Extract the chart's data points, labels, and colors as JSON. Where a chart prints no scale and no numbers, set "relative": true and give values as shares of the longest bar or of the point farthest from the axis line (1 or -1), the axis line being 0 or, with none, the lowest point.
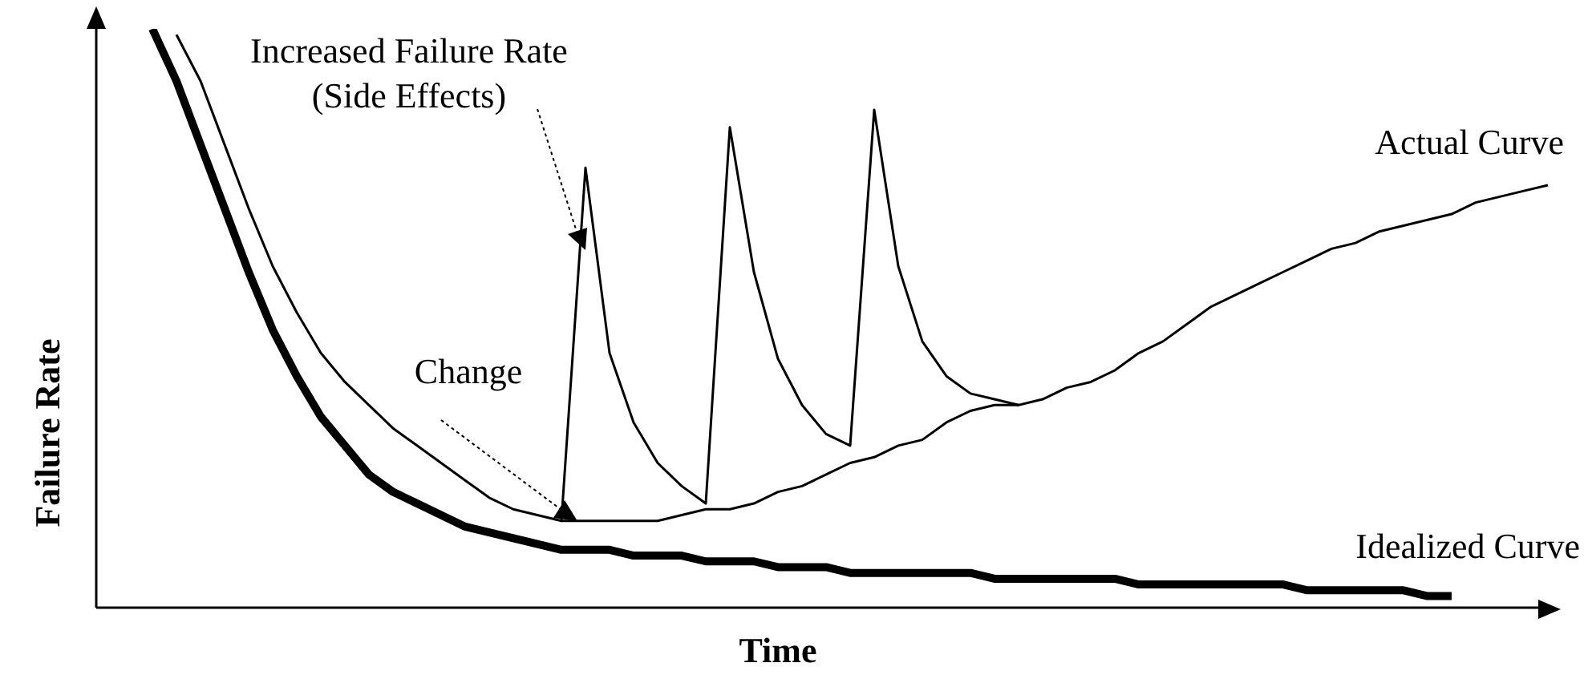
{
  "chart_data": {
    "type": "line",
    "relative": true,
    "xlabel": "Time",
    "ylabel": "Failure Rate",
    "marker": "none",
    "categories": [
      null,
      null,
      null,
      null,
      null,
      null,
      null,
      null,
      null,
      null,
      null,
      null,
      null,
      null,
      null,
      null,
      null,
      null,
      null,
      null,
      null,
      null,
      null,
      null,
      null,
      null,
      null,
      null,
      null,
      null,
      null,
      null,
      null,
      null,
      null,
      null,
      null,
      null,
      null,
      null,
      null,
      null,
      null,
      null,
      null,
      null,
      null,
      null,
      null,
      null,
      null,
      null,
      null,
      null,
      null,
      null,
      null,
      null,
      null
    ],
    "annotations": [
      "Increased Failure Rate\n(Side Effects)",
      "Change"
    ],
    "series": [
      {
        "name": "Idealized Curve",
        "color": "#000000",
        "values": [
          1.0,
          0.91,
          0.8,
          0.69,
          0.58,
          0.48,
          0.4,
          0.33,
          0.28,
          0.23,
          0.2,
          0.18,
          0.16,
          0.14,
          0.13,
          0.12,
          0.11,
          0.1,
          0.1,
          0.1,
          0.09,
          0.09,
          0.09,
          0.08,
          0.08,
          0.08,
          0.07,
          0.07,
          0.07,
          0.06,
          0.06,
          0.06,
          0.06,
          0.06,
          0.06,
          0.05,
          0.05,
          0.05,
          0.05,
          0.05,
          0.05,
          0.04,
          0.04,
          0.04,
          0.04,
          0.04,
          0.04,
          0.04,
          0.03,
          0.03,
          0.03,
          0.03,
          0.03,
          0.02,
          0.02,
          null,
          null,
          null,
          null
        ]
      },
      {
        "name": "Actual Curve",
        "color": "#000000",
        "values": [
          null,
          0.99,
          0.91,
          0.8,
          0.69,
          0.59,
          0.51,
          0.44,
          0.39,
          0.35,
          0.31,
          0.28,
          0.25,
          0.22,
          0.19,
          0.17,
          0.16,
          0.15,
          0.76,
          0.44,
          0.32,
          0.25,
          0.21,
          0.18,
          0.83,
          0.58,
          0.43,
          0.35,
          0.3,
          0.28,
          0.86,
          0.59,
          0.46,
          0.4,
          0.37,
          0.36,
          0.35,
          0.36,
          0.38,
          0.39,
          0.41,
          0.44,
          0.46,
          0.49,
          0.52,
          0.54,
          0.56,
          0.58,
          0.6,
          0.62,
          0.63,
          0.65,
          0.66,
          0.67,
          0.68,
          0.7,
          0.71,
          0.72,
          0.73
        ]
      },
      {
        "color": "#000000",
        "values": [
          null,
          null,
          null,
          null,
          null,
          null,
          null,
          null,
          null,
          null,
          null,
          null,
          null,
          null,
          null,
          null,
          null,
          0.15,
          0.15,
          0.15,
          0.15,
          0.15,
          0.16,
          0.17,
          0.17,
          0.18,
          0.2,
          0.21,
          0.23,
          0.25,
          0.26,
          0.28,
          0.29,
          0.32,
          0.34,
          0.35,
          0.35,
          null,
          null,
          null,
          null,
          null,
          null,
          null,
          null,
          null,
          null,
          null,
          null,
          null,
          null,
          null,
          null,
          null,
          null,
          null,
          null,
          null,
          null
        ]
      }
    ]
  }
}
